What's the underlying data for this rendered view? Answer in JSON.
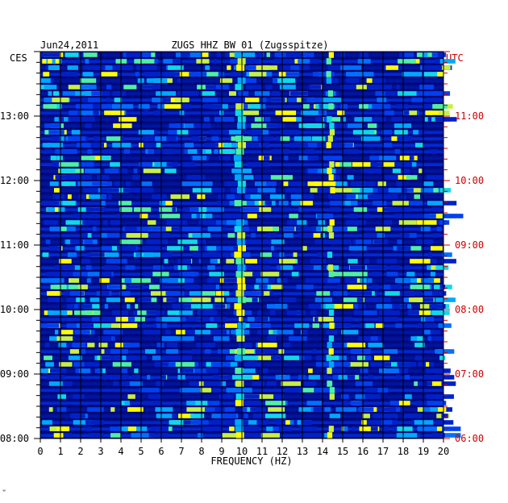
{
  "chart_data": {
    "type": "heatmap",
    "date": "Jun24,2011",
    "title": "ZUGS HHZ BW 01 (Zugsspitze)",
    "left_zone": "CES",
    "right_zone": "UTC",
    "xlabel": "FREQUENCY (HZ)",
    "xlim": [
      0,
      20
    ],
    "x_ticks": [
      "0",
      "1",
      "2",
      "3",
      "4",
      "5",
      "6",
      "7",
      "8",
      "9",
      "10",
      "11",
      "12",
      "13",
      "14",
      "15",
      "16",
      "17",
      "18",
      "19",
      "20"
    ],
    "left_time_ticks": [
      "13:00",
      "12:00",
      "11:00",
      "10:00",
      "09:00",
      "08:00"
    ],
    "right_time_ticks": [
      "11:00",
      "10:00",
      "09:00",
      "08:00",
      "07:00",
      "06:00"
    ],
    "time_range_ces": [
      "08:00",
      "14:00"
    ],
    "colors": {
      "background": "#000c8c",
      "high": "#ffff00",
      "grid": "#000000",
      "right_axis": "#cc0000"
    },
    "corner_mark": "ʷ"
  }
}
